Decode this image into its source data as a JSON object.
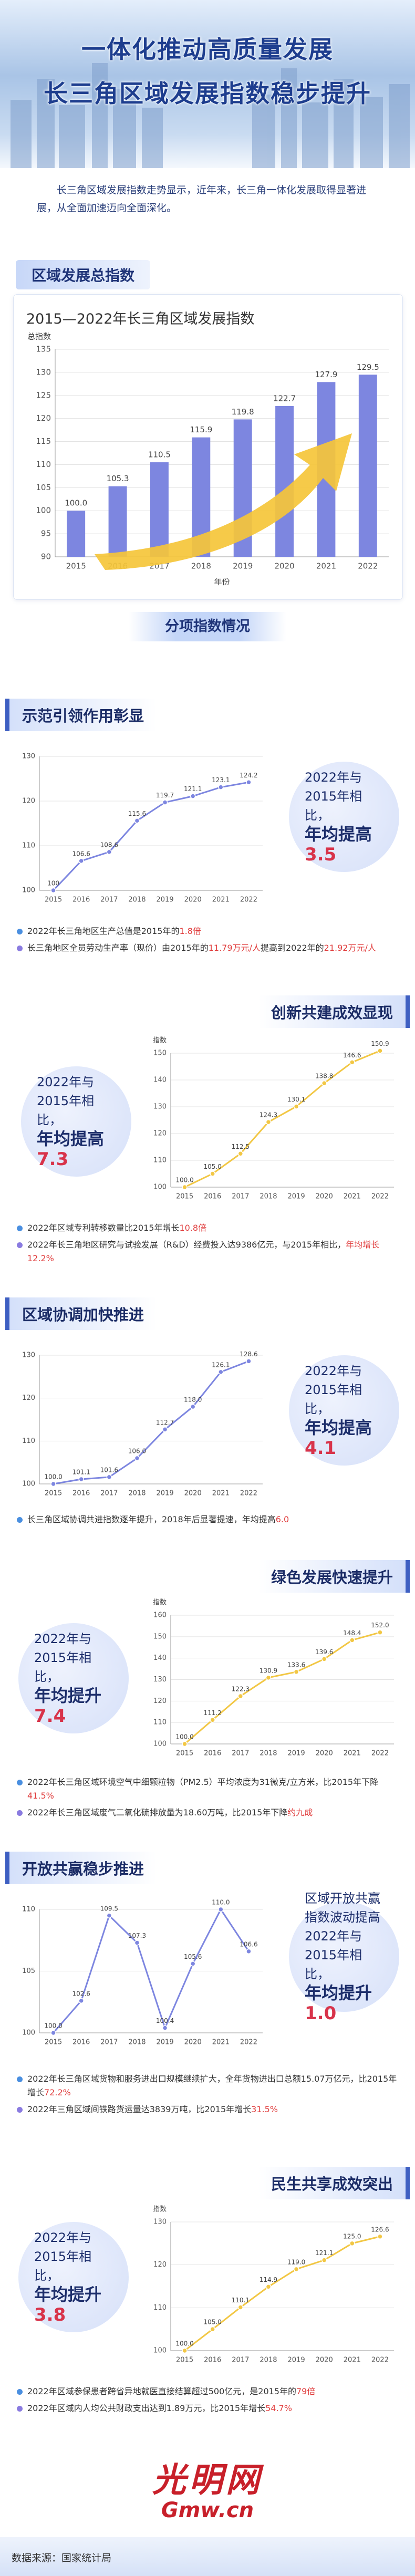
{
  "header": {
    "title": [
      "一体化推动高质量发展",
      "长三角区域发展指数稳步提升"
    ],
    "intro": "长三角区域发展指数走势显示，近年来，长三角一体化发展取得显著进展，从全面加速迈向全面深化。"
  },
  "overview_label": "区域发展总指数",
  "subindex_label": "分项指数情况",
  "sections": [
    {
      "heading": "示范引领作用彰显",
      "callout": {
        "lead": "2022年与2015年相比，",
        "emph": "年均提高",
        "num": "3.5"
      },
      "bullets": [
        [
          "2022年长三角地区生产总值是2015年的",
          "1.8倍"
        ],
        [
          "长三角地区全员劳动生产率（现价）由2015年的",
          "11.79万元/人",
          "提高到2022年的",
          "21.92万元/人"
        ]
      ]
    },
    {
      "heading": "创新共建成效显现",
      "callout": {
        "lead": "2022年与2015年相比，",
        "emph": "年均提高",
        "num": "7.3"
      },
      "bullets": [
        [
          "2022年区域专利转移数量比2015年增长",
          "10.8倍"
        ],
        [
          "2022年长三角地区研究与试验发展（R&D）经费投入达9386亿元，与2015年相比，",
          "年均增长12.2%"
        ]
      ]
    },
    {
      "heading": "区域协调加快推进",
      "callout": {
        "lead": "2022年与2015年相比，",
        "emph": "年均提高",
        "num": "4.1"
      },
      "bullets": [
        [
          "长三角区域协调共进指数逐年提升，2018年后显著提速，年均提高",
          "6.0"
        ]
      ]
    },
    {
      "heading": "绿色发展快速提升",
      "callout": {
        "lead": "2022年与2015年相比，",
        "emph": "年均提升",
        "num": "7.4"
      },
      "bullets": [
        [
          "2022年长三角区域环境空气中细颗粒物（PM2.5）平均浓度为31微克/立方米，比2015年下降",
          "41.5%"
        ],
        [
          "2022年长三角区域废气二氧化硫排放量为18.60万吨，比2015年下降",
          "约九成"
        ]
      ]
    },
    {
      "heading": "开放共赢稳步推进",
      "callout": {
        "lead": "区域开放共赢指数波动提高2022年与2015年相比，",
        "emph": "年均提升",
        "num": "1.0"
      },
      "bullets": [
        [
          "2022年长三角区域货物和服务进出口规模继续扩大，全年货物进出口总额15.07万亿元，比2015年增长",
          "72.2%"
        ],
        [
          "2022年三角区域间铁路货运量达3839万吨，比2015年增长",
          "31.5%"
        ]
      ]
    },
    {
      "heading": "民生共享成效突出",
      "callout": {
        "lead": "2022年与2015年相比，",
        "emph": "年均提升",
        "num": "3.8"
      },
      "bullets": [
        [
          "2022年区域参保患者跨省异地就医直接结算超过500亿元，是2015年的",
          "79倍"
        ],
        [
          "2022年区域内人均公共财政支出达到1.89万元，比2015年增长",
          "54.7%"
        ]
      ]
    }
  ],
  "source": "数据来源：国家统计局",
  "logo": {
    "text": "光明网",
    "sub": "Gmw.cn"
  },
  "chart_data": [
    {
      "type": "bar",
      "title": "2015—2022年长三角区域发展指数",
      "y_label": "总指数",
      "x_label": "年份",
      "categories": [
        "2015",
        "2016",
        "2017",
        "2018",
        "2019",
        "2020",
        "2021",
        "2022"
      ],
      "values": [
        100.0,
        105.3,
        110.5,
        115.9,
        119.8,
        122.7,
        127.9,
        129.5
      ],
      "value_labels": [
        "100.0",
        "105.3",
        "110.5",
        "115.9",
        "119.8",
        "122.7",
        "127.9",
        "129.5"
      ],
      "color": "#7d86e0",
      "ylim": [
        90,
        135
      ],
      "yticks": [
        90,
        95,
        100,
        105,
        110,
        115,
        120,
        125,
        130,
        135
      ],
      "grid": true
    },
    {
      "type": "line",
      "categories": [
        "2015",
        "2016",
        "2017",
        "2018",
        "2019",
        "2020",
        "2021",
        "2022"
      ],
      "values": [
        100,
        106.6,
        108.6,
        115.6,
        119.7,
        121.1,
        123.1,
        124.2
      ],
      "value_labels": [
        "100",
        "106.6",
        "108.6",
        "115.6",
        "119.7",
        "121.1",
        "123.1",
        "124.2"
      ],
      "color": "#7d86e0",
      "ylim": [
        100,
        130
      ],
      "yticks": [
        100,
        110,
        120,
        130
      ],
      "grid": true
    },
    {
      "type": "line",
      "y_label": "指数",
      "categories": [
        "2015",
        "2016",
        "2017",
        "2018",
        "2019",
        "2020",
        "2021",
        "2022"
      ],
      "values": [
        100.0,
        105.0,
        112.5,
        124.3,
        130.1,
        138.8,
        146.6,
        150.9
      ],
      "value_labels": [
        "100.0",
        "105.0",
        "112.5",
        "124.3",
        "130.1",
        "138.8",
        "146.6",
        "150.9"
      ],
      "color": "#f2c744",
      "ylim": [
        100,
        150
      ],
      "yticks": [
        100,
        110,
        120,
        130,
        140,
        150
      ],
      "grid": true
    },
    {
      "type": "line",
      "categories": [
        "2015",
        "2016",
        "2017",
        "2018",
        "2019",
        "2020",
        "2021",
        "2022"
      ],
      "values": [
        100.0,
        101.1,
        101.6,
        106.0,
        112.7,
        118.0,
        126.1,
        128.6
      ],
      "value_labels": [
        "100.0",
        "101.1",
        "101.6",
        "106.0",
        "112.7",
        "118.0",
        "126.1",
        "128.6"
      ],
      "color": "#7d86e0",
      "ylim": [
        100,
        130
      ],
      "yticks": [
        100,
        110,
        120,
        130
      ],
      "grid": true
    },
    {
      "type": "line",
      "y_label": "指数",
      "categories": [
        "2015",
        "2016",
        "2017",
        "2018",
        "2019",
        "2020",
        "2021",
        "2022"
      ],
      "values": [
        100.0,
        111.2,
        122.3,
        130.9,
        133.6,
        139.6,
        148.4,
        152.0
      ],
      "value_labels": [
        "100.0",
        "111.2",
        "122.3",
        "130.9",
        "133.6",
        "139.6",
        "148.4",
        "152.0"
      ],
      "color": "#f2c744",
      "ylim": [
        100,
        160
      ],
      "yticks": [
        100,
        110,
        120,
        130,
        140,
        150,
        160
      ],
      "grid": true
    },
    {
      "type": "line",
      "categories": [
        "2015",
        "2016",
        "2017",
        "2018",
        "2019",
        "2020",
        "2021",
        "2022"
      ],
      "values": [
        100.0,
        102.6,
        109.5,
        107.3,
        100.4,
        105.6,
        110.0,
        106.6
      ],
      "value_labels": [
        "100.0",
        "102.6",
        "109.5",
        "107.3",
        "100.4",
        "105.6",
        "110.0",
        "106.6"
      ],
      "color": "#7d86e0",
      "ylim": [
        100,
        110
      ],
      "yticks": [
        100,
        105,
        110
      ],
      "grid": true
    },
    {
      "type": "line",
      "y_label": "指数",
      "categories": [
        "2015",
        "2016",
        "2017",
        "2018",
        "2019",
        "2020",
        "2021",
        "2022"
      ],
      "values": [
        100.0,
        105.0,
        110.1,
        114.9,
        119.0,
        121.1,
        125.0,
        126.6
      ],
      "value_labels": [
        "100.0",
        "105.0",
        "110.1",
        "114.9",
        "119.0",
        "121.1",
        "125.0",
        "126.6"
      ],
      "color": "#f2c744",
      "ylim": [
        100,
        130
      ],
      "yticks": [
        100,
        110,
        120,
        130
      ],
      "grid": true
    }
  ]
}
